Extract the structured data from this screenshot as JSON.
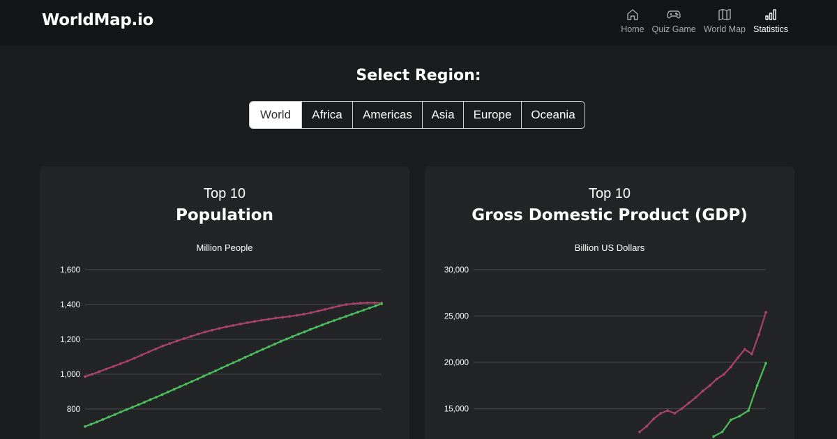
{
  "brand": "WorldMap.io",
  "nav": [
    {
      "label": "Home",
      "icon": "home-icon"
    },
    {
      "label": "Quiz Game",
      "icon": "gamepad-icon"
    },
    {
      "label": "World Map",
      "icon": "map-icon"
    },
    {
      "label": "Statistics",
      "icon": "bar-chart-icon",
      "active": true
    }
  ],
  "region": {
    "title": "Select Region:",
    "options": [
      "World",
      "Africa",
      "Americas",
      "Asia",
      "Europe",
      "Oceania"
    ],
    "selected": "World"
  },
  "cards": [
    {
      "top": "Top 10",
      "title": "Population",
      "unit": "Million People"
    },
    {
      "top": "Top 10",
      "title": "Gross Domestic Product  (GDP)",
      "unit": "Billion US Dollars"
    }
  ],
  "colors": {
    "series_red": "#a8436a",
    "series_green": "#4cbe5e",
    "grid": "#45474a",
    "background": "#1b1c1d",
    "card": "#232425",
    "navbar": "#141516"
  },
  "chart_data": [
    {
      "type": "line",
      "title": "Population",
      "ylabel": "Million People",
      "ylim": [
        640,
        1600
      ],
      "yticks": [
        1600,
        1400,
        1200,
        1000,
        800
      ],
      "tick_labels": [
        "1,600",
        "1,400",
        "1,200",
        "1,000",
        "800"
      ],
      "grid": true,
      "series": [
        {
          "values": [
            986,
            1000,
            1015,
            1030,
            1045,
            1060,
            1075,
            1092,
            1110,
            1128,
            1145,
            1162,
            1176,
            1190,
            1204,
            1217,
            1230,
            1242,
            1253,
            1263,
            1272,
            1280,
            1288,
            1296,
            1303,
            1310,
            1316,
            1322,
            1327,
            1332,
            1338,
            1345,
            1353,
            1362,
            1372,
            1382,
            1392,
            1400,
            1405,
            1408,
            1410,
            1410,
            1409
          ]
        },
        {
          "values": [
            700,
            713,
            726,
            740,
            754,
            768,
            783,
            797,
            811,
            825,
            839,
            854,
            868,
            883,
            898,
            913,
            928,
            943,
            958,
            973,
            989,
            1004,
            1019,
            1035,
            1051,
            1066,
            1081,
            1097,
            1112,
            1128,
            1143,
            1158,
            1173,
            1188,
            1202,
            1216,
            1230,
            1243,
            1257,
            1270,
            1283,
            1296,
            1308,
            1320,
            1332,
            1344,
            1356,
            1368,
            1380,
            1392,
            1404
          ]
        }
      ]
    },
    {
      "type": "line",
      "title": "Gross Domestic Product  (GDP)",
      "ylabel": "Billion US Dollars",
      "ylim": [
        12000,
        30000
      ],
      "yticks": [
        30000,
        25000,
        20000,
        15000
      ],
      "tick_labels": [
        "30,000",
        "25,000",
        "20,000",
        "15,000"
      ],
      "grid": true,
      "series": [
        {
          "values": [
            12500,
            13100,
            13900,
            14500,
            14800,
            14500,
            15000,
            15600,
            16200,
            16900,
            17500,
            18200,
            18700,
            19500,
            20500,
            21400,
            20900,
            23000,
            25400
          ]
        },
        {
          "values": [
            12000,
            12500,
            13800,
            14200,
            14800,
            17500,
            19900
          ]
        }
      ]
    }
  ]
}
